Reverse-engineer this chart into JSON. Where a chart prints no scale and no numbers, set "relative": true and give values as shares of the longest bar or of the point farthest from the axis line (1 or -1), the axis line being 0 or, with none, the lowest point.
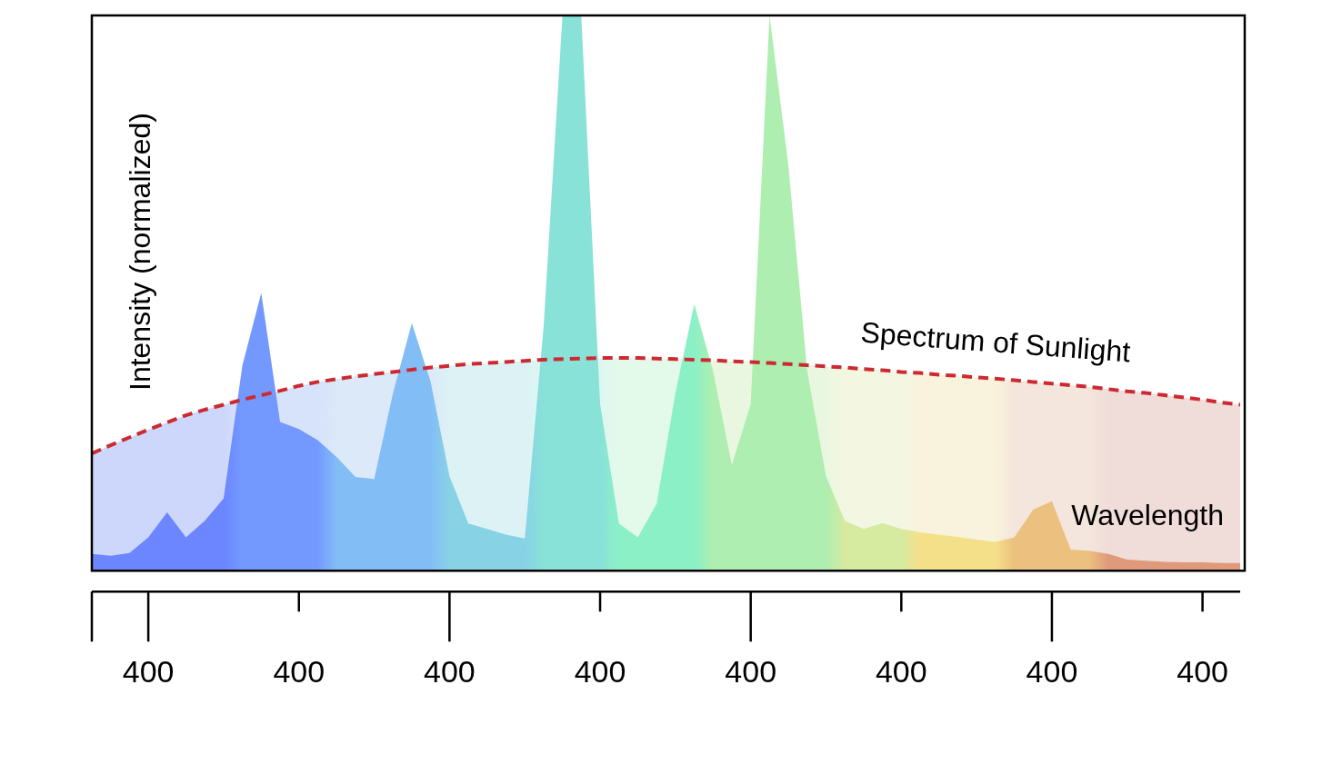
{
  "chart_data": {
    "type": "area",
    "relative": true,
    "xlabel": "Wavelength",
    "ylabel": "Intensity (normalized)",
    "legend": false,
    "grid": false,
    "categories": [
      null,
      null,
      null,
      "400",
      null,
      null,
      null,
      null,
      null,
      null,
      null,
      "400",
      null,
      null,
      null,
      null,
      null,
      null,
      null,
      "400",
      null,
      null,
      null,
      null,
      null,
      null,
      null,
      "400",
      null,
      null,
      null,
      null,
      null,
      null,
      null,
      "400",
      null,
      null,
      null,
      null,
      null,
      null,
      null,
      "400",
      null,
      null,
      null,
      null,
      null,
      null,
      null,
      "400",
      null,
      null,
      null,
      null,
      null,
      null,
      null,
      "400",
      null,
      null
    ],
    "series": [
      {
        "values": [
          0.03,
          0.027,
          0.032,
          0.06,
          0.105,
          0.06,
          0.09,
          0.13,
          0.37,
          0.5,
          0.268,
          0.255,
          0.235,
          0.205,
          0.169,
          0.165,
          0.32,
          0.446,
          0.34,
          0.17,
          0.085,
          0.075,
          0.065,
          0.058,
          0.44,
          1,
          1,
          0.3,
          0.085,
          0.06,
          0.12,
          0.32,
          0.48,
          0.36,
          0.19,
          0.3,
          1,
          0.73,
          0.36,
          0.17,
          0.09,
          0.075,
          0.086,
          0.075,
          0.069,
          0.065,
          0.061,
          0.056,
          0.052,
          0.06,
          0.11,
          0.125,
          0.038,
          0.036,
          0.03,
          0.02,
          0.018,
          0.016,
          0.015,
          0.015,
          0.014,
          0.014
        ],
        "colors": [
          "#6b86ff",
          "#6b86ff",
          "#6b86ff",
          "#6b86ff",
          "#6b86ff",
          "#6b86ff",
          "#6b86ff",
          "#6b86ff",
          "#7399ff",
          "#7399ff",
          "#7399ff",
          "#7399ff",
          "#7399ff",
          "#83bdf6",
          "#83bdf6",
          "#83bdf6",
          "#83bdf6",
          "#83bdf6",
          "#83bdf6",
          "#88d2e6",
          "#88d2e6",
          "#88d2e6",
          "#88d2e6",
          "#88d2e6",
          "#88e2d8",
          "#88e2d8",
          "#88e2d8",
          "#88e2d8",
          "#8cf0c6",
          "#8cf0c6",
          "#8cf0c6",
          "#8cf0c6",
          "#8cf0c6",
          "#aeeeb0",
          "#aeeeb0",
          "#aeeeb0",
          "#aeeeb0",
          "#aeeeb0",
          "#aeeeb0",
          "#aeeeb0",
          "#d6eaa0",
          "#d6eaa0",
          "#d6eaa0",
          "#d6eaa0",
          "#f5e08a",
          "#f5e08a",
          "#f5e08a",
          "#f5e08a",
          "#f5e08a",
          "#ecc07e",
          "#ecc07e",
          "#ecc07e",
          "#ecc07e",
          "#ecc07e",
          "#df9a7c",
          "#df9a7c",
          "#df9a7c",
          "#df9a7c",
          "#df9a7c",
          "#df9a7c",
          "#df9a7c",
          "#df9a7c"
        ]
      },
      {
        "name": "Spectrum of Sunlight",
        "type": "area",
        "line_style": "dashed",
        "color": "#cc2a30",
        "values": [
          0.211,
          0.226,
          0.24,
          0.254,
          0.267,
          0.28,
          0.29,
          0.299,
          0.308,
          0.316,
          0.324,
          0.333,
          0.34,
          0.345,
          0.35,
          0.354,
          0.358,
          0.362,
          0.366,
          0.369,
          0.372,
          0.374,
          0.376,
          0.378,
          0.38,
          0.381,
          0.382,
          0.383,
          0.383,
          0.383,
          0.382,
          0.381,
          0.38,
          0.379,
          0.377,
          0.376,
          0.374,
          0.372,
          0.37,
          0.368,
          0.366,
          0.363,
          0.361,
          0.358,
          0.356,
          0.353,
          0.351,
          0.348,
          0.346,
          0.343,
          0.34,
          0.337,
          0.334,
          0.331,
          0.327,
          0.323,
          0.32,
          0.316,
          0.312,
          0.308,
          0.303,
          0.299
        ],
        "colors": [
          "#cdd6fb",
          "#cdd6fb",
          "#cdd6fb",
          "#cdd6fb",
          "#cdd6fb",
          "#cdd6fb",
          "#cdd6fb",
          "#cdd6fb",
          "#d7e3fa",
          "#d7e3fa",
          "#d7e3fa",
          "#d7e3fa",
          "#d7e3fa",
          "#dbe9f8",
          "#dbe9f8",
          "#dbe9f8",
          "#dbe9f8",
          "#dbe9f8",
          "#dbe9f8",
          "#dcf2f5",
          "#dcf2f5",
          "#dcf2f5",
          "#dcf2f5",
          "#dcf2f5",
          "#ddf7f0",
          "#ddf7f0",
          "#ddf7f0",
          "#ddf7f0",
          "#e3f9ea",
          "#e3f9ea",
          "#e3f9ea",
          "#e3f9ea",
          "#e3f9ea",
          "#eaf7e0",
          "#eaf7e0",
          "#eaf7e0",
          "#eaf7e0",
          "#eaf7e0",
          "#eaf7e0",
          "#eaf7e0",
          "#f3f7e2",
          "#f3f7e2",
          "#f3f7e2",
          "#f3f7e2",
          "#f9f2dc",
          "#f9f2dc",
          "#f9f2dc",
          "#f9f2dc",
          "#f9f2dc",
          "#f4e6dc",
          "#f4e6dc",
          "#f4e6dc",
          "#f4e6dc",
          "#f4e6dc",
          "#f0dcd8",
          "#f0dcd8",
          "#f0dcd8",
          "#f0dcd8",
          "#f0dcd8",
          "#f0dcd8",
          "#f0dcd8",
          "#f0dcd8"
        ]
      }
    ]
  }
}
